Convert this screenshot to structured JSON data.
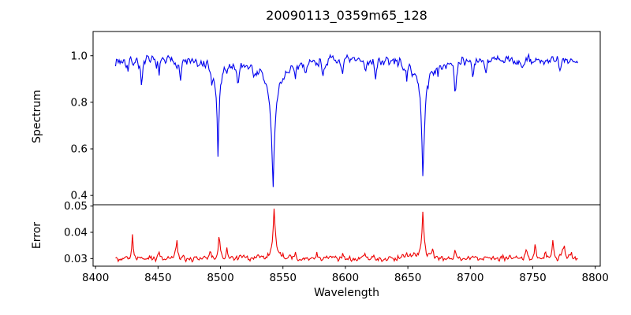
{
  "figure": {
    "background": "#ffffff",
    "frame_color": "#000000",
    "text_color": "#000000"
  },
  "chart_data": {
    "type": "line",
    "title": "20090113_0359m65_128",
    "xlabel": "Wavelength",
    "xlim": [
      8398,
      8804
    ],
    "xticks": [
      8400,
      8450,
      8500,
      8550,
      8600,
      8650,
      8700,
      8750,
      8800
    ],
    "xtick_labels": [
      "8400",
      "8450",
      "8500",
      "8550",
      "8600",
      "8650",
      "8700",
      "8750",
      "8800"
    ],
    "x_data_range": [
      8416,
      8786
    ],
    "n_points": 520,
    "grid": false,
    "legend": "none",
    "panels": [
      {
        "name": "spectrum",
        "ylabel": "Spectrum",
        "color": "#0000ee",
        "ylim": [
          0.36,
          1.104
        ],
        "yticks": [
          0.4,
          0.6,
          0.8,
          1.0
        ],
        "ytick_labels": [
          "0.4",
          "0.6",
          "0.8",
          "1.0"
        ],
        "continuum": 0.978,
        "noise_amplitude": 0.022,
        "noise_seed": 7,
        "absorption_lines": [
          {
            "center": 8426.0,
            "depth": 0.05,
            "width": 0.8
          },
          {
            "center": 8437.0,
            "depth": 0.12,
            "width": 1.0
          },
          {
            "center": 8451.0,
            "depth": 0.07,
            "width": 0.8
          },
          {
            "center": 8468.0,
            "depth": 0.09,
            "width": 0.9
          },
          {
            "center": 8482.0,
            "depth": 0.04,
            "width": 0.8
          },
          {
            "center": 8493.0,
            "depth": 0.07,
            "width": 0.8
          },
          {
            "center": 8498.0,
            "depth": 0.3,
            "width": 1.2
          },
          {
            "center": 8498.0,
            "depth": 0.1,
            "width": 6.0
          },
          {
            "center": 8514.0,
            "depth": 0.11,
            "width": 1.0
          },
          {
            "center": 8527.0,
            "depth": 0.05,
            "width": 0.8
          },
          {
            "center": 8542.1,
            "depth": 0.4,
            "width": 1.6
          },
          {
            "center": 8542.1,
            "depth": 0.17,
            "width": 9.0
          },
          {
            "center": 8560.0,
            "depth": 0.07,
            "width": 1.0
          },
          {
            "center": 8568.0,
            "depth": 0.05,
            "width": 0.8
          },
          {
            "center": 8582.0,
            "depth": 0.06,
            "width": 0.9
          },
          {
            "center": 8598.0,
            "depth": 0.06,
            "width": 0.8
          },
          {
            "center": 8616.0,
            "depth": 0.06,
            "width": 0.8
          },
          {
            "center": 8624.0,
            "depth": 0.08,
            "width": 0.8
          },
          {
            "center": 8649.0,
            "depth": 0.09,
            "width": 0.9
          },
          {
            "center": 8662.1,
            "depth": 0.39,
            "width": 1.5
          },
          {
            "center": 8662.1,
            "depth": 0.13,
            "width": 7.0
          },
          {
            "center": 8674.0,
            "depth": 0.06,
            "width": 0.8
          },
          {
            "center": 8688.0,
            "depth": 0.19,
            "width": 1.1
          },
          {
            "center": 8702.0,
            "depth": 0.07,
            "width": 0.8
          },
          {
            "center": 8713.0,
            "depth": 0.05,
            "width": 0.8
          },
          {
            "center": 8742.0,
            "depth": 0.05,
            "width": 0.8
          },
          {
            "center": 8772.0,
            "depth": 0.06,
            "width": 0.8
          }
        ]
      },
      {
        "name": "error",
        "ylabel": "Error",
        "color": "#ee0000",
        "ylim": [
          0.0271,
          0.0505
        ],
        "yticks": [
          0.03,
          0.04,
          0.05
        ],
        "ytick_labels": [
          "0.03",
          "0.04",
          "0.05"
        ],
        "baseline": 0.0301,
        "noise_amplitude": 0.0011,
        "noise_seed": 99,
        "peaks": [
          {
            "center": 8429.5,
            "height": 0.0093,
            "width": 0.7
          },
          {
            "center": 8451.0,
            "height": 0.002,
            "width": 0.7
          },
          {
            "center": 8465.0,
            "height": 0.0088,
            "width": 0.7
          },
          {
            "center": 8492.0,
            "height": 0.003,
            "width": 0.7
          },
          {
            "center": 8499.0,
            "height": 0.0112,
            "width": 0.9
          },
          {
            "center": 8505.0,
            "height": 0.005,
            "width": 0.8
          },
          {
            "center": 8516.0,
            "height": 0.0018,
            "width": 0.7
          },
          {
            "center": 8543.0,
            "height": 0.0172,
            "width": 1.2
          },
          {
            "center": 8543.0,
            "height": 0.0025,
            "width": 5.0
          },
          {
            "center": 8560.0,
            "height": 0.002,
            "width": 0.8
          },
          {
            "center": 8577.0,
            "height": 0.0028,
            "width": 0.9
          },
          {
            "center": 8598.0,
            "height": 0.0015,
            "width": 0.7
          },
          {
            "center": 8616.0,
            "height": 0.0018,
            "width": 0.7
          },
          {
            "center": 8634.0,
            "height": 0.0012,
            "width": 0.7
          },
          {
            "center": 8649.0,
            "height": 0.0032,
            "width": 0.8
          },
          {
            "center": 8655.0,
            "height": 0.002,
            "width": 0.7
          },
          {
            "center": 8662.0,
            "height": 0.0162,
            "width": 1.1
          },
          {
            "center": 8662.0,
            "height": 0.002,
            "width": 5.0
          },
          {
            "center": 8670.0,
            "height": 0.0028,
            "width": 0.8
          },
          {
            "center": 8688.0,
            "height": 0.003,
            "width": 0.9
          },
          {
            "center": 8702.0,
            "height": 0.002,
            "width": 0.7
          },
          {
            "center": 8726.0,
            "height": 0.0015,
            "width": 0.7
          },
          {
            "center": 8745.0,
            "height": 0.0035,
            "width": 0.8
          },
          {
            "center": 8752.0,
            "height": 0.0055,
            "width": 0.8
          },
          {
            "center": 8760.0,
            "height": 0.0035,
            "width": 0.7
          },
          {
            "center": 8766.0,
            "height": 0.008,
            "width": 0.9
          },
          {
            "center": 8775.0,
            "height": 0.006,
            "width": 1.0
          },
          {
            "center": 8781.0,
            "height": 0.0025,
            "width": 0.7
          }
        ]
      }
    ]
  }
}
